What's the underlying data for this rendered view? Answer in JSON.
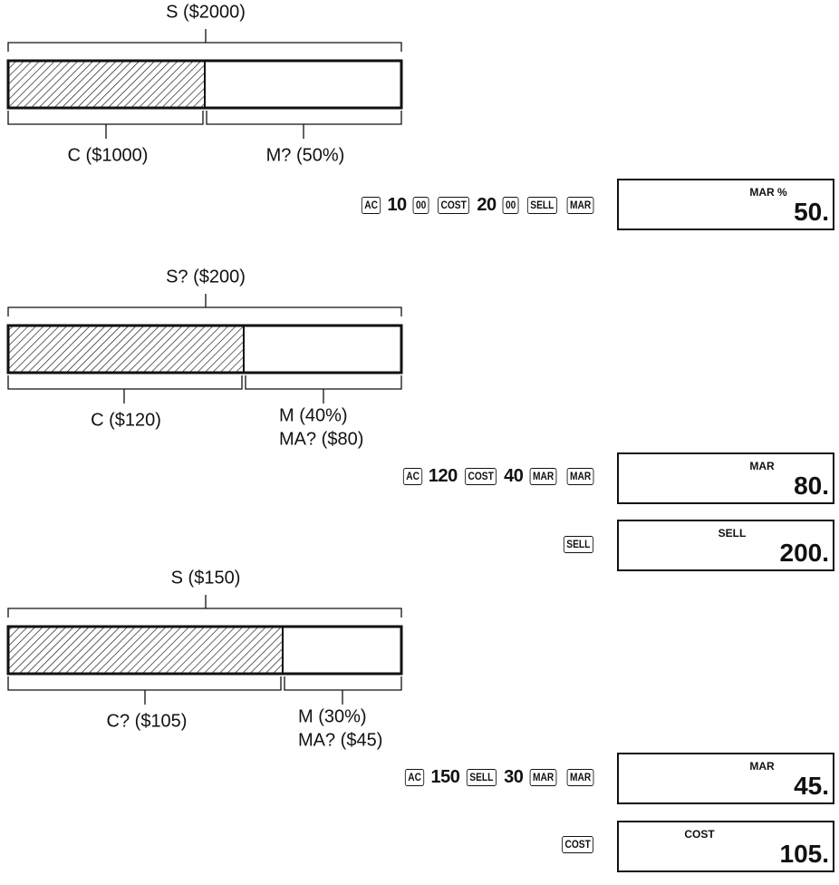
{
  "examples": [
    {
      "diagram": {
        "total": "S ($2000)",
        "cost": "C ($1000)",
        "margin": [
          "M? (50%)"
        ]
      },
      "steps": [
        {
          "keys": [
            {
              "key": "AC"
            },
            "10",
            {
              "key": "00"
            },
            {
              "key": "COST"
            },
            "20",
            {
              "key": "00"
            },
            {
              "key": "SELL"
            },
            {
              "key": "MAR"
            }
          ],
          "display": {
            "indicator": "MAR %",
            "value": "50."
          }
        }
      ]
    },
    {
      "diagram": {
        "total": "S? ($200)",
        "cost": "C ($120)",
        "margin": [
          "M (40%)",
          "MA? ($80)"
        ]
      },
      "steps": [
        {
          "keys": [
            {
              "key": "AC"
            },
            "120",
            {
              "key": "COST"
            },
            "40",
            {
              "key": "MAR"
            },
            {
              "key": "MAR"
            }
          ],
          "display": {
            "indicator": "MAR",
            "value": "80."
          }
        },
        {
          "keys": [
            {
              "key": "SELL"
            }
          ],
          "display": {
            "indicator": "SELL",
            "value": "200."
          }
        }
      ]
    },
    {
      "diagram": {
        "total": "S ($150)",
        "cost": "C? ($105)",
        "margin": [
          "M (30%)",
          "MA? ($45)"
        ]
      },
      "steps": [
        {
          "keys": [
            {
              "key": "AC"
            },
            "150",
            {
              "key": "SELL"
            },
            "30",
            {
              "key": "MAR"
            },
            {
              "key": "MAR"
            }
          ],
          "display": {
            "indicator": "MAR",
            "value": "45."
          }
        },
        {
          "keys": [
            {
              "key": "COST"
            }
          ],
          "display": {
            "indicator": "COST",
            "value": "105."
          }
        }
      ]
    }
  ]
}
